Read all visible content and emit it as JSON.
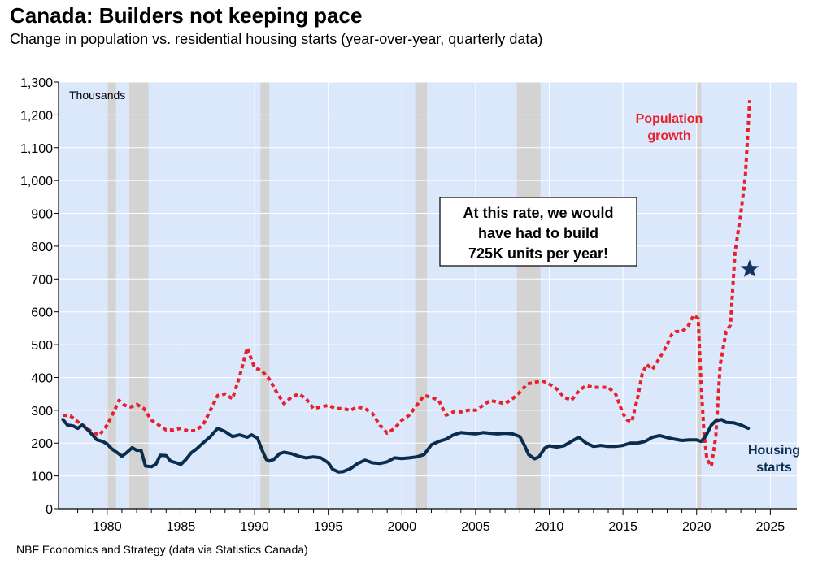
{
  "title": "Canada: Builders not keeping pace",
  "subtitle": "Change in population vs. residential housing starts (year-over-year, quarterly data)",
  "source": "NBF Economics and Strategy (data via Statistics Canada)",
  "colors": {
    "plot_bg": "#dbe7fb",
    "grid": "#ffffff",
    "recession": "#d3d3d3",
    "population": "#e8202a",
    "housing": "#0a2c4d",
    "star": "#16355e"
  },
  "chart_data": {
    "type": "line",
    "title": "Canada: Builders not keeping pace",
    "unit_label": "Thousands",
    "xlim": [
      1976.7,
      2026.8
    ],
    "ylim": [
      0,
      1300
    ],
    "y_ticks": [
      0,
      100,
      200,
      300,
      400,
      500,
      600,
      700,
      800,
      900,
      1000,
      1100,
      1200,
      1300
    ],
    "y_tick_labels": [
      "0",
      "100",
      "200",
      "300",
      "400",
      "500",
      "600",
      "700",
      "800",
      "900",
      "1,000",
      "1,100",
      "1,200",
      "1,300"
    ],
    "x_ticks": [
      1980,
      1985,
      1990,
      1995,
      2000,
      2005,
      2010,
      2015,
      2020,
      2025
    ],
    "x_tick_labels": [
      "1980",
      "1985",
      "1990",
      "1995",
      "2000",
      "2005",
      "2010",
      "2015",
      "2020",
      "2025"
    ],
    "recessions": [
      [
        1980.0,
        1980.6
      ],
      [
        1981.5,
        1982.8
      ],
      [
        1990.4,
        1991.0
      ],
      [
        2000.9,
        2001.7
      ],
      [
        2007.8,
        2009.4
      ],
      [
        2020.0,
        2020.3
      ]
    ],
    "series": [
      {
        "name": "Population growth",
        "style": "dotted",
        "points": [
          [
            1977.0,
            285
          ],
          [
            1977.5,
            283
          ],
          [
            1978.0,
            265
          ],
          [
            1978.5,
            250
          ],
          [
            1979.0,
            232
          ],
          [
            1979.5,
            225
          ],
          [
            1980.0,
            255
          ],
          [
            1980.5,
            300
          ],
          [
            1980.8,
            330
          ],
          [
            1981.2,
            315
          ],
          [
            1981.6,
            310
          ],
          [
            1982.0,
            318
          ],
          [
            1982.5,
            305
          ],
          [
            1983.0,
            270
          ],
          [
            1983.5,
            255
          ],
          [
            1984.0,
            240
          ],
          [
            1984.5,
            240
          ],
          [
            1985.0,
            245
          ],
          [
            1985.5,
            237
          ],
          [
            1986.0,
            238
          ],
          [
            1986.5,
            255
          ],
          [
            1987.0,
            300
          ],
          [
            1987.5,
            345
          ],
          [
            1988.0,
            350
          ],
          [
            1988.5,
            335
          ],
          [
            1989.0,
            405
          ],
          [
            1989.5,
            490
          ],
          [
            1990.0,
            430
          ],
          [
            1990.5,
            420
          ],
          [
            1991.0,
            395
          ],
          [
            1991.5,
            355
          ],
          [
            1992.0,
            320
          ],
          [
            1992.5,
            340
          ],
          [
            1993.0,
            350
          ],
          [
            1993.5,
            335
          ],
          [
            1994.0,
            305
          ],
          [
            1994.5,
            310
          ],
          [
            1995.0,
            315
          ],
          [
            1995.5,
            305
          ],
          [
            1996.0,
            305
          ],
          [
            1996.5,
            300
          ],
          [
            1997.0,
            310
          ],
          [
            1997.5,
            305
          ],
          [
            1998.0,
            290
          ],
          [
            1998.5,
            255
          ],
          [
            1999.0,
            230
          ],
          [
            1999.5,
            245
          ],
          [
            2000.0,
            270
          ],
          [
            2000.5,
            285
          ],
          [
            2001.0,
            315
          ],
          [
            2001.5,
            345
          ],
          [
            2002.0,
            340
          ],
          [
            2002.5,
            330
          ],
          [
            2003.0,
            285
          ],
          [
            2003.5,
            295
          ],
          [
            2004.0,
            295
          ],
          [
            2004.5,
            300
          ],
          [
            2005.0,
            300
          ],
          [
            2005.5,
            315
          ],
          [
            2006.0,
            330
          ],
          [
            2006.5,
            325
          ],
          [
            2007.0,
            320
          ],
          [
            2007.5,
            335
          ],
          [
            2008.0,
            355
          ],
          [
            2008.5,
            380
          ],
          [
            2009.0,
            385
          ],
          [
            2009.5,
            390
          ],
          [
            2010.0,
            380
          ],
          [
            2010.5,
            365
          ],
          [
            2011.0,
            340
          ],
          [
            2011.5,
            330
          ],
          [
            2012.0,
            360
          ],
          [
            2012.5,
            375
          ],
          [
            2013.0,
            370
          ],
          [
            2013.5,
            370
          ],
          [
            2014.0,
            370
          ],
          [
            2014.5,
            350
          ],
          [
            2015.0,
            290
          ],
          [
            2015.3,
            270
          ],
          [
            2015.6,
            265
          ],
          [
            2016.0,
            340
          ],
          [
            2016.3,
            410
          ],
          [
            2016.6,
            440
          ],
          [
            2017.0,
            425
          ],
          [
            2017.5,
            460
          ],
          [
            2018.0,
            500
          ],
          [
            2018.3,
            530
          ],
          [
            2018.6,
            540
          ],
          [
            2019.0,
            540
          ],
          [
            2019.4,
            555
          ],
          [
            2019.8,
            590
          ],
          [
            2020.1,
            580
          ],
          [
            2020.3,
            380
          ],
          [
            2020.5,
            230
          ],
          [
            2020.7,
            150
          ],
          [
            2021.0,
            130
          ],
          [
            2021.3,
            220
          ],
          [
            2021.6,
            440
          ],
          [
            2022.0,
            540
          ],
          [
            2022.3,
            560
          ],
          [
            2022.6,
            780
          ],
          [
            2023.0,
            900
          ],
          [
            2023.3,
            1010
          ],
          [
            2023.6,
            1245
          ]
        ]
      },
      {
        "name": "Housing starts",
        "style": "solid",
        "points": [
          [
            1977.0,
            272
          ],
          [
            1977.3,
            255
          ],
          [
            1977.7,
            252
          ],
          [
            1978.0,
            245
          ],
          [
            1978.3,
            255
          ],
          [
            1978.7,
            240
          ],
          [
            1979.0,
            225
          ],
          [
            1979.3,
            210
          ],
          [
            1979.7,
            205
          ],
          [
            1980.0,
            197
          ],
          [
            1980.3,
            183
          ],
          [
            1980.7,
            170
          ],
          [
            1981.0,
            160
          ],
          [
            1981.3,
            170
          ],
          [
            1981.7,
            186
          ],
          [
            1982.0,
            178
          ],
          [
            1982.3,
            178
          ],
          [
            1982.6,
            130
          ],
          [
            1983.0,
            128
          ],
          [
            1983.3,
            135
          ],
          [
            1983.6,
            163
          ],
          [
            1984.0,
            162
          ],
          [
            1984.3,
            145
          ],
          [
            1984.7,
            140
          ],
          [
            1985.0,
            135
          ],
          [
            1985.3,
            148
          ],
          [
            1985.7,
            170
          ],
          [
            1986.0,
            180
          ],
          [
            1986.5,
            200
          ],
          [
            1987.0,
            220
          ],
          [
            1987.5,
            245
          ],
          [
            1988.0,
            235
          ],
          [
            1988.5,
            220
          ],
          [
            1989.0,
            225
          ],
          [
            1989.5,
            218
          ],
          [
            1989.8,
            225
          ],
          [
            1990.2,
            215
          ],
          [
            1990.5,
            180
          ],
          [
            1990.8,
            150
          ],
          [
            1991.0,
            145
          ],
          [
            1991.3,
            150
          ],
          [
            1991.7,
            168
          ],
          [
            1992.0,
            172
          ],
          [
            1992.5,
            168
          ],
          [
            1993.0,
            160
          ],
          [
            1993.5,
            155
          ],
          [
            1994.0,
            158
          ],
          [
            1994.5,
            155
          ],
          [
            1995.0,
            140
          ],
          [
            1995.3,
            120
          ],
          [
            1995.7,
            112
          ],
          [
            1996.0,
            113
          ],
          [
            1996.5,
            122
          ],
          [
            1997.0,
            138
          ],
          [
            1997.5,
            148
          ],
          [
            1998.0,
            140
          ],
          [
            1998.5,
            138
          ],
          [
            1999.0,
            143
          ],
          [
            1999.5,
            155
          ],
          [
            2000.0,
            153
          ],
          [
            2000.5,
            155
          ],
          [
            2001.0,
            158
          ],
          [
            2001.5,
            165
          ],
          [
            2002.0,
            195
          ],
          [
            2002.5,
            205
          ],
          [
            2003.0,
            212
          ],
          [
            2003.5,
            225
          ],
          [
            2004.0,
            232
          ],
          [
            2004.5,
            230
          ],
          [
            2005.0,
            228
          ],
          [
            2005.5,
            232
          ],
          [
            2006.0,
            230
          ],
          [
            2006.5,
            228
          ],
          [
            2007.0,
            230
          ],
          [
            2007.5,
            228
          ],
          [
            2008.0,
            220
          ],
          [
            2008.3,
            195
          ],
          [
            2008.6,
            165
          ],
          [
            2009.0,
            152
          ],
          [
            2009.3,
            158
          ],
          [
            2009.7,
            185
          ],
          [
            2010.0,
            192
          ],
          [
            2010.5,
            188
          ],
          [
            2011.0,
            192
          ],
          [
            2011.5,
            205
          ],
          [
            2012.0,
            218
          ],
          [
            2012.5,
            200
          ],
          [
            2013.0,
            190
          ],
          [
            2013.5,
            193
          ],
          [
            2014.0,
            190
          ],
          [
            2014.5,
            190
          ],
          [
            2015.0,
            193
          ],
          [
            2015.5,
            200
          ],
          [
            2016.0,
            200
          ],
          [
            2016.5,
            205
          ],
          [
            2017.0,
            218
          ],
          [
            2017.5,
            223
          ],
          [
            2018.0,
            217
          ],
          [
            2018.5,
            212
          ],
          [
            2019.0,
            208
          ],
          [
            2019.5,
            210
          ],
          [
            2020.0,
            210
          ],
          [
            2020.3,
            205
          ],
          [
            2020.6,
            220
          ],
          [
            2021.0,
            255
          ],
          [
            2021.3,
            268
          ],
          [
            2021.7,
            272
          ],
          [
            2022.0,
            263
          ],
          [
            2022.5,
            262
          ],
          [
            2023.0,
            255
          ],
          [
            2023.5,
            245
          ]
        ]
      }
    ],
    "annotations": {
      "population_label": [
        "Population",
        "growth"
      ],
      "housing_label": [
        "Housing",
        "starts"
      ],
      "callout": [
        "At this rate, we would",
        "have had to build",
        "725K units per year!"
      ],
      "star": {
        "x": 2023.6,
        "y": 730
      }
    }
  }
}
